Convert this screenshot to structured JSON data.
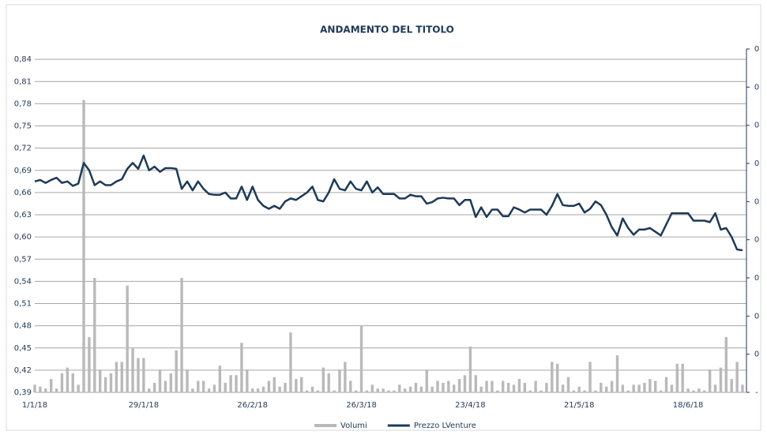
{
  "chart_data": {
    "type": "bar-line",
    "title": "ANDAMENTO DEL TITOLO",
    "categories": [
      "1/1/18",
      null,
      null,
      null,
      null,
      null,
      null,
      null,
      null,
      null,
      null,
      null,
      null,
      null,
      null,
      null,
      null,
      null,
      null,
      null,
      "29/1/18",
      null,
      null,
      null,
      null,
      null,
      null,
      null,
      null,
      null,
      null,
      null,
      null,
      null,
      null,
      null,
      null,
      null,
      null,
      null,
      "26/2/18",
      null,
      null,
      null,
      null,
      null,
      null,
      null,
      null,
      null,
      null,
      null,
      null,
      null,
      null,
      null,
      null,
      null,
      null,
      null,
      "26/3/18",
      null,
      null,
      null,
      null,
      null,
      null,
      null,
      null,
      null,
      null,
      null,
      null,
      null,
      null,
      null,
      null,
      null,
      null,
      null,
      "23/4/18",
      null,
      null,
      null,
      null,
      null,
      null,
      null,
      null,
      null,
      null,
      null,
      null,
      null,
      null,
      null,
      null,
      null,
      null,
      null,
      "21/5/18",
      null,
      null,
      null,
      null,
      null,
      null,
      null,
      null,
      null,
      null,
      null,
      null,
      null,
      null,
      null,
      null,
      null,
      null,
      null,
      "18/6/18",
      null,
      null,
      null,
      null,
      null,
      null,
      null,
      null,
      null,
      null
    ],
    "series": [
      {
        "name": "Volumi",
        "kind": "bar",
        "axis": "y2",
        "color": "#b9b9b9",
        "values": [
          0.02,
          0.015,
          0.01,
          0.035,
          0.01,
          0.05,
          0.065,
          0.05,
          0.02,
          0.766,
          0.145,
          0.3,
          0.06,
          0.04,
          0.05,
          0.08,
          0.08,
          0.28,
          0.115,
          0.09,
          0.09,
          0.01,
          0.025,
          0.06,
          0.03,
          0.05,
          0.11,
          0.3,
          0.06,
          0.01,
          0.03,
          0.03,
          0.01,
          0.02,
          0.07,
          0.025,
          0.045,
          0.045,
          0.13,
          0.06,
          0.01,
          0.01,
          0.015,
          0.03,
          0.04,
          0.015,
          0.025,
          0.157,
          0.035,
          0.04,
          0.005,
          0.015,
          0.005,
          0.065,
          0.05,
          0.005,
          0.06,
          0.08,
          0.03,
          0.005,
          0.176,
          0.005,
          0.02,
          0.01,
          0.01,
          0.005,
          0.005,
          0.02,
          0.01,
          0.015,
          0.025,
          0.015,
          0.06,
          0.015,
          0.03,
          0.025,
          0.03,
          0.02,
          0.035,
          0.045,
          0.12,
          0.045,
          0.015,
          0.03,
          0.03,
          0.005,
          0.03,
          0.025,
          0.02,
          0.035,
          0.025,
          0.005,
          0.03,
          0.005,
          0.025,
          0.08,
          0.075,
          0.02,
          0.04,
          0.005,
          0.015,
          0.005,
          0.08,
          0.005,
          0.025,
          0.015,
          0.03,
          0.097,
          0.02,
          0.005,
          0.02,
          0.02,
          0.025,
          0.035,
          0.03,
          0.005,
          0.04,
          0.02,
          0.075,
          0.075,
          0.01,
          0.005,
          0.01,
          0.005,
          0.06,
          0.02,
          0.065,
          0.145,
          0.035,
          0.08,
          0.02
        ]
      },
      {
        "name": "Prezzo LVenture",
        "kind": "line",
        "axis": "y",
        "color": "#1d3957",
        "values": [
          0.675,
          0.677,
          0.673,
          0.677,
          0.68,
          0.673,
          0.675,
          0.669,
          0.672,
          0.7,
          0.69,
          0.67,
          0.675,
          0.67,
          0.67,
          0.675,
          0.678,
          0.692,
          0.7,
          0.692,
          0.71,
          0.69,
          0.695,
          0.688,
          0.693,
          0.693,
          0.692,
          0.665,
          0.675,
          0.663,
          0.675,
          0.665,
          0.658,
          0.657,
          0.657,
          0.66,
          0.652,
          0.652,
          0.668,
          0.65,
          0.668,
          0.65,
          0.642,
          0.638,
          0.642,
          0.638,
          0.648,
          0.652,
          0.65,
          0.655,
          0.66,
          0.668,
          0.65,
          0.648,
          0.66,
          0.678,
          0.665,
          0.663,
          0.675,
          0.665,
          0.663,
          0.675,
          0.66,
          0.667,
          0.658,
          0.658,
          0.658,
          0.652,
          0.652,
          0.657,
          0.655,
          0.655,
          0.645,
          0.647,
          0.652,
          0.653,
          0.652,
          0.652,
          0.643,
          0.65,
          0.65,
          0.627,
          0.64,
          0.627,
          0.637,
          0.637,
          0.628,
          0.628,
          0.64,
          0.637,
          0.633,
          0.637,
          0.637,
          0.637,
          0.63,
          0.642,
          0.658,
          0.643,
          0.642,
          0.642,
          0.645,
          0.633,
          0.638,
          0.648,
          0.643,
          0.63,
          0.613,
          0.602,
          0.625,
          0.612,
          0.603,
          0.61,
          0.61,
          0.612,
          0.607,
          0.602,
          0.617,
          0.632,
          0.632,
          0.632,
          0.632,
          0.622,
          0.622,
          0.622,
          0.62,
          0.632,
          0.61,
          0.612,
          0.6,
          0.583,
          0.582
        ]
      }
    ],
    "ylim": [
      0.39,
      0.854
    ],
    "yticks": [
      {
        "value": 0.39,
        "label": "0,39"
      },
      {
        "value": 0.42,
        "label": "0,42"
      },
      {
        "value": 0.45,
        "label": "0,45"
      },
      {
        "value": 0.48,
        "label": "0,48"
      },
      {
        "value": 0.51,
        "label": "0,51"
      },
      {
        "value": 0.54,
        "label": "0,54"
      },
      {
        "value": 0.57,
        "label": "0,57"
      },
      {
        "value": 0.6,
        "label": "0,60"
      },
      {
        "value": 0.63,
        "label": "0,63"
      },
      {
        "value": 0.66,
        "label": "0,66"
      },
      {
        "value": 0.69,
        "label": "0,69"
      },
      {
        "value": 0.72,
        "label": "0,72"
      },
      {
        "value": 0.75,
        "label": "0,75"
      },
      {
        "value": 0.78,
        "label": "0,78"
      },
      {
        "value": 0.81,
        "label": "0,81"
      },
      {
        "value": 0.84,
        "label": "0,84"
      }
    ],
    "y2lim": [
      0,
      0.9
    ],
    "y2ticks": [
      {
        "value": 0,
        "label": "-"
      },
      {
        "value": 0.1,
        "label": "0"
      },
      {
        "value": 0.2,
        "label": "0"
      },
      {
        "value": 0.3,
        "label": "0"
      },
      {
        "value": 0.4,
        "label": "0"
      },
      {
        "value": 0.5,
        "label": "0"
      },
      {
        "value": 0.6,
        "label": "0"
      },
      {
        "value": 0.7,
        "label": "0"
      },
      {
        "value": 0.8,
        "label": "0"
      },
      {
        "value": 0.9,
        "label": "0"
      }
    ],
    "grid": true,
    "legend": "bottom"
  }
}
